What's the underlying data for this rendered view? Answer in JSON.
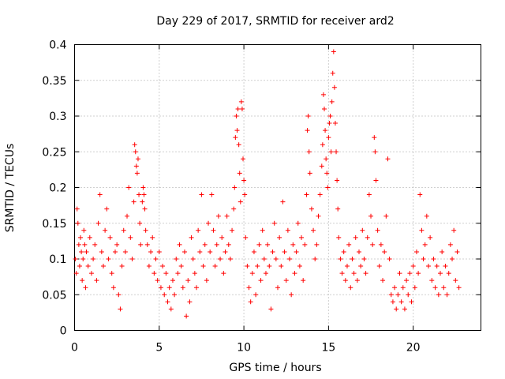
{
  "chart_data": {
    "type": "scatter",
    "title": "Day 229 of 2017, SRMTID for receiver ard2",
    "xlabel": "GPS time / hours",
    "ylabel": "SRMTID / TECUs",
    "xlim": [
      0,
      24
    ],
    "ylim": [
      0,
      0.4
    ],
    "x_ticks": [
      0,
      5,
      10,
      15,
      20
    ],
    "x_tick_labels": [
      "0",
      "5",
      "10",
      "15",
      "20"
    ],
    "y_ticks": [
      0,
      0.05,
      0.1,
      0.15,
      0.2,
      0.25,
      0.3,
      0.35,
      0.4
    ],
    "y_tick_labels": [
      "0",
      "0.05",
      "0.1",
      "0.15",
      "0.2",
      "0.25",
      "0.3",
      "0.35",
      "0.4"
    ],
    "grid": true,
    "marker": "+",
    "color": "#ff0000",
    "series": [
      {
        "name": "SRMTID",
        "points": [
          [
            0.05,
            0.1
          ],
          [
            0.1,
            0.08
          ],
          [
            0.15,
            0.17
          ],
          [
            0.2,
            0.15
          ],
          [
            0.25,
            0.12
          ],
          [
            0.3,
            0.09
          ],
          [
            0.35,
            0.13
          ],
          [
            0.4,
            0.11
          ],
          [
            0.45,
            0.07
          ],
          [
            0.5,
            0.1
          ],
          [
            0.55,
            0.14
          ],
          [
            0.6,
            0.12
          ],
          [
            0.65,
            0.06
          ],
          [
            0.7,
            0.11
          ],
          [
            0.8,
            0.09
          ],
          [
            0.9,
            0.13
          ],
          [
            1.0,
            0.08
          ],
          [
            1.1,
            0.1
          ],
          [
            1.2,
            0.12
          ],
          [
            1.3,
            0.07
          ],
          [
            1.4,
            0.15
          ],
          [
            1.5,
            0.19
          ],
          [
            1.6,
            0.11
          ],
          [
            1.7,
            0.09
          ],
          [
            1.8,
            0.14
          ],
          [
            1.9,
            0.17
          ],
          [
            2.0,
            0.1
          ],
          [
            2.1,
            0.13
          ],
          [
            2.2,
            0.08
          ],
          [
            2.3,
            0.06
          ],
          [
            2.4,
            0.11
          ],
          [
            2.5,
            0.12
          ],
          [
            2.6,
            0.05
          ],
          [
            2.7,
            0.03
          ],
          [
            2.8,
            0.09
          ],
          [
            2.9,
            0.14
          ],
          [
            3.0,
            0.11
          ],
          [
            3.1,
            0.16
          ],
          [
            3.2,
            0.2
          ],
          [
            3.3,
            0.13
          ],
          [
            3.4,
            0.1
          ],
          [
            3.5,
            0.18
          ],
          [
            3.55,
            0.26
          ],
          [
            3.6,
            0.25
          ],
          [
            3.65,
            0.23
          ],
          [
            3.7,
            0.22
          ],
          [
            3.75,
            0.24
          ],
          [
            3.8,
            0.19
          ],
          [
            3.85,
            0.15
          ],
          [
            3.9,
            0.12
          ],
          [
            4.0,
            0.18
          ],
          [
            4.05,
            0.2
          ],
          [
            4.1,
            0.19
          ],
          [
            4.15,
            0.17
          ],
          [
            4.2,
            0.14
          ],
          [
            4.3,
            0.12
          ],
          [
            4.4,
            0.09
          ],
          [
            4.5,
            0.11
          ],
          [
            4.6,
            0.13
          ],
          [
            4.7,
            0.08
          ],
          [
            4.8,
            0.1
          ],
          [
            4.9,
            0.07
          ],
          [
            5.0,
            0.11
          ],
          [
            5.1,
            0.06
          ],
          [
            5.2,
            0.09
          ],
          [
            5.3,
            0.05
          ],
          [
            5.4,
            0.08
          ],
          [
            5.5,
            0.04
          ],
          [
            5.6,
            0.06
          ],
          [
            5.7,
            0.03
          ],
          [
            5.8,
            0.07
          ],
          [
            5.9,
            0.05
          ],
          [
            6.0,
            0.1
          ],
          [
            6.1,
            0.08
          ],
          [
            6.2,
            0.12
          ],
          [
            6.3,
            0.09
          ],
          [
            6.4,
            0.06
          ],
          [
            6.5,
            0.11
          ],
          [
            6.6,
            0.02
          ],
          [
            6.7,
            0.07
          ],
          [
            6.8,
            0.04
          ],
          [
            6.9,
            0.13
          ],
          [
            7.0,
            0.1
          ],
          [
            7.1,
            0.08
          ],
          [
            7.2,
            0.06
          ],
          [
            7.3,
            0.14
          ],
          [
            7.4,
            0.11
          ],
          [
            7.5,
            0.19
          ],
          [
            7.6,
            0.09
          ],
          [
            7.7,
            0.12
          ],
          [
            7.8,
            0.07
          ],
          [
            7.9,
            0.15
          ],
          [
            8.0,
            0.11
          ],
          [
            8.1,
            0.19
          ],
          [
            8.2,
            0.14
          ],
          [
            8.3,
            0.09
          ],
          [
            8.4,
            0.12
          ],
          [
            8.5,
            0.16
          ],
          [
            8.6,
            0.1
          ],
          [
            8.7,
            0.13
          ],
          [
            8.8,
            0.08
          ],
          [
            8.9,
            0.11
          ],
          [
            9.0,
            0.16
          ],
          [
            9.1,
            0.12
          ],
          [
            9.2,
            0.1
          ],
          [
            9.3,
            0.14
          ],
          [
            9.4,
            0.17
          ],
          [
            9.45,
            0.2
          ],
          [
            9.5,
            0.27
          ],
          [
            9.55,
            0.3
          ],
          [
            9.6,
            0.28
          ],
          [
            9.65,
            0.31
          ],
          [
            9.7,
            0.26
          ],
          [
            9.75,
            0.22
          ],
          [
            9.8,
            0.18
          ],
          [
            9.85,
            0.32
          ],
          [
            9.9,
            0.31
          ],
          [
            9.95,
            0.24
          ],
          [
            10.0,
            0.21
          ],
          [
            10.05,
            0.19
          ],
          [
            10.1,
            0.13
          ],
          [
            10.2,
            0.09
          ],
          [
            10.3,
            0.06
          ],
          [
            10.4,
            0.04
          ],
          [
            10.5,
            0.08
          ],
          [
            10.6,
            0.11
          ],
          [
            10.7,
            0.05
          ],
          [
            10.8,
            0.09
          ],
          [
            10.9,
            0.12
          ],
          [
            11.0,
            0.07
          ],
          [
            11.1,
            0.14
          ],
          [
            11.2,
            0.1
          ],
          [
            11.3,
            0.08
          ],
          [
            11.4,
            0.12
          ],
          [
            11.5,
            0.09
          ],
          [
            11.6,
            0.03
          ],
          [
            11.7,
            0.11
          ],
          [
            11.8,
            0.15
          ],
          [
            11.9,
            0.1
          ],
          [
            12.0,
            0.06
          ],
          [
            12.1,
            0.13
          ],
          [
            12.2,
            0.09
          ],
          [
            12.3,
            0.18
          ],
          [
            12.4,
            0.11
          ],
          [
            12.5,
            0.07
          ],
          [
            12.6,
            0.14
          ],
          [
            12.7,
            0.1
          ],
          [
            12.8,
            0.05
          ],
          [
            12.9,
            0.12
          ],
          [
            13.0,
            0.08
          ],
          [
            13.1,
            0.11
          ],
          [
            13.2,
            0.15
          ],
          [
            13.3,
            0.09
          ],
          [
            13.4,
            0.13
          ],
          [
            13.5,
            0.07
          ],
          [
            13.6,
            0.12
          ],
          [
            13.7,
            0.19
          ],
          [
            13.75,
            0.28
          ],
          [
            13.8,
            0.3
          ],
          [
            13.85,
            0.25
          ],
          [
            13.9,
            0.22
          ],
          [
            14.0,
            0.17
          ],
          [
            14.1,
            0.14
          ],
          [
            14.2,
            0.1
          ],
          [
            14.3,
            0.12
          ],
          [
            14.4,
            0.16
          ],
          [
            14.5,
            0.19
          ],
          [
            14.6,
            0.23
          ],
          [
            14.65,
            0.26
          ],
          [
            14.7,
            0.33
          ],
          [
            14.75,
            0.31
          ],
          [
            14.8,
            0.28
          ],
          [
            14.85,
            0.24
          ],
          [
            14.9,
            0.22
          ],
          [
            14.95,
            0.2
          ],
          [
            15.0,
            0.27
          ],
          [
            15.05,
            0.29
          ],
          [
            15.1,
            0.3
          ],
          [
            15.15,
            0.25
          ],
          [
            15.2,
            0.32
          ],
          [
            15.25,
            0.36
          ],
          [
            15.3,
            0.39
          ],
          [
            15.35,
            0.34
          ],
          [
            15.4,
            0.29
          ],
          [
            15.45,
            0.25
          ],
          [
            15.5,
            0.21
          ],
          [
            15.55,
            0.17
          ],
          [
            15.6,
            0.13
          ],
          [
            15.7,
            0.1
          ],
          [
            15.8,
            0.08
          ],
          [
            15.9,
            0.11
          ],
          [
            16.0,
            0.07
          ],
          [
            16.1,
            0.09
          ],
          [
            16.2,
            0.12
          ],
          [
            16.3,
            0.06
          ],
          [
            16.4,
            0.1
          ],
          [
            16.5,
            0.08
          ],
          [
            16.6,
            0.13
          ],
          [
            16.7,
            0.07
          ],
          [
            16.8,
            0.11
          ],
          [
            16.9,
            0.09
          ],
          [
            17.0,
            0.14
          ],
          [
            17.1,
            0.1
          ],
          [
            17.2,
            0.08
          ],
          [
            17.3,
            0.13
          ],
          [
            17.4,
            0.19
          ],
          [
            17.5,
            0.16
          ],
          [
            17.6,
            0.12
          ],
          [
            17.7,
            0.27
          ],
          [
            17.75,
            0.25
          ],
          [
            17.8,
            0.21
          ],
          [
            17.9,
            0.14
          ],
          [
            18.0,
            0.09
          ],
          [
            18.1,
            0.12
          ],
          [
            18.2,
            0.07
          ],
          [
            18.3,
            0.11
          ],
          [
            18.4,
            0.16
          ],
          [
            18.5,
            0.24
          ],
          [
            18.6,
            0.1
          ],
          [
            18.7,
            0.05
          ],
          [
            18.8,
            0.04
          ],
          [
            18.9,
            0.06
          ],
          [
            19.0,
            0.03
          ],
          [
            19.1,
            0.05
          ],
          [
            19.2,
            0.08
          ],
          [
            19.3,
            0.04
          ],
          [
            19.4,
            0.06
          ],
          [
            19.5,
            0.03
          ],
          [
            19.6,
            0.07
          ],
          [
            19.7,
            0.05
          ],
          [
            19.8,
            0.08
          ],
          [
            19.9,
            0.04
          ],
          [
            20.0,
            0.09
          ],
          [
            20.1,
            0.06
          ],
          [
            20.2,
            0.11
          ],
          [
            20.3,
            0.08
          ],
          [
            20.4,
            0.19
          ],
          [
            20.5,
            0.14
          ],
          [
            20.6,
            0.1
          ],
          [
            20.7,
            0.12
          ],
          [
            20.8,
            0.16
          ],
          [
            20.9,
            0.09
          ],
          [
            21.0,
            0.13
          ],
          [
            21.1,
            0.07
          ],
          [
            21.2,
            0.1
          ],
          [
            21.3,
            0.06
          ],
          [
            21.4,
            0.09
          ],
          [
            21.5,
            0.05
          ],
          [
            21.6,
            0.08
          ],
          [
            21.7,
            0.11
          ],
          [
            21.8,
            0.06
          ],
          [
            21.9,
            0.09
          ],
          [
            22.0,
            0.05
          ],
          [
            22.1,
            0.08
          ],
          [
            22.2,
            0.12
          ],
          [
            22.3,
            0.1
          ],
          [
            22.4,
            0.14
          ],
          [
            22.5,
            0.07
          ],
          [
            22.6,
            0.11
          ],
          [
            22.7,
            0.06
          ]
        ]
      }
    ]
  }
}
